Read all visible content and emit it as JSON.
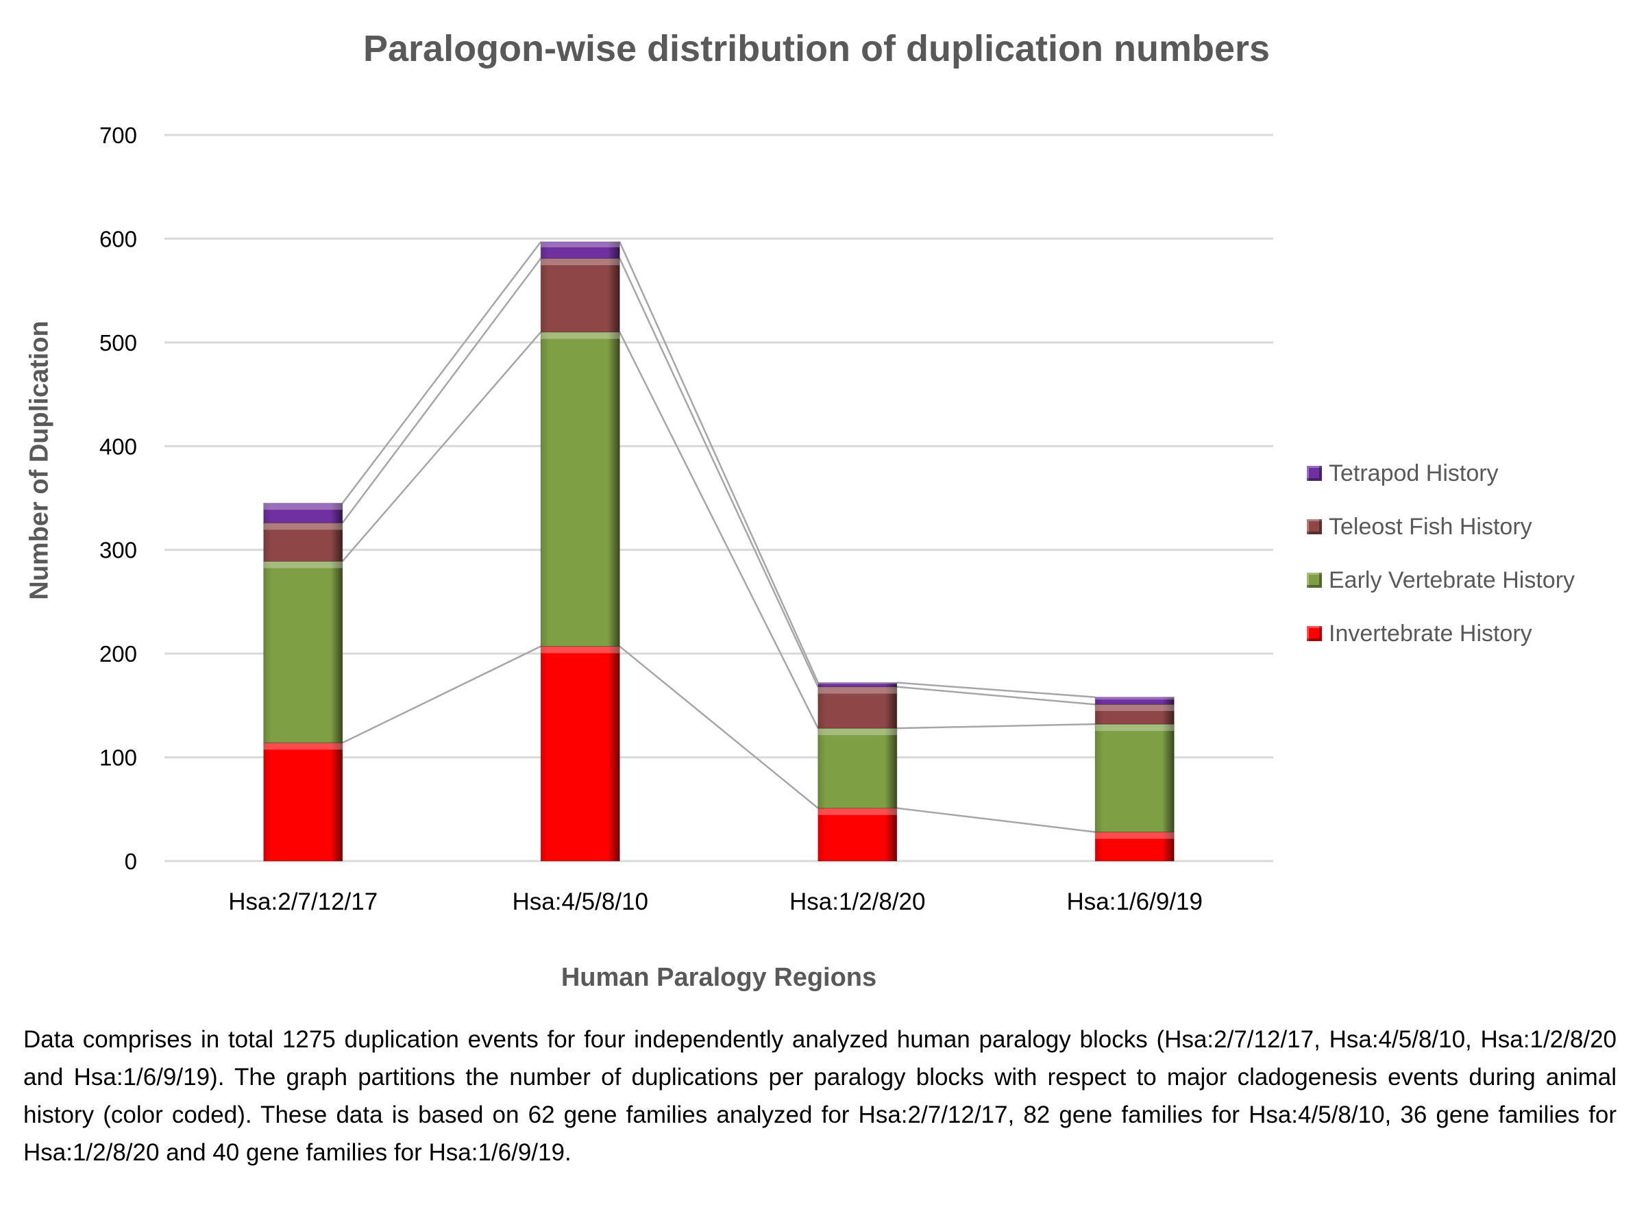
{
  "chart_data": {
    "type": "bar",
    "stacked": true,
    "title": "Paralogon-wise distribution of duplication numbers",
    "xlabel": "Human Paralogy Regions",
    "ylabel": "Number of Duplication",
    "ylim": [
      0,
      700
    ],
    "yticks": [
      0,
      100,
      200,
      300,
      400,
      500,
      600,
      700
    ],
    "grid": true,
    "legend_position": "right",
    "series_lines": true,
    "categories": [
      "Hsa:2/7/12/17",
      "Hsa:4/5/8/10",
      "Hsa:1/2/8/20",
      "Hsa:1/6/9/19"
    ],
    "series": [
      {
        "name": "Invertebrate History",
        "color": "#FF0000",
        "values": [
          114,
          207,
          51,
          28
        ]
      },
      {
        "name": "Early Vertebrate History",
        "color": "#7F9F45",
        "values": [
          175,
          303,
          77,
          104
        ]
      },
      {
        "name": "Teleost Fish History",
        "color": "#8E4646",
        "values": [
          37,
          71,
          40,
          19
        ]
      },
      {
        "name": "Tetrapod History",
        "color": "#7030A0",
        "values": [
          19,
          16,
          4,
          7
        ]
      }
    ]
  },
  "caption": "Data comprises in total 1275 duplication events for four independently analyzed human paralogy blocks (Hsa:2/7/12/17, Hsa:4/5/8/10, Hsa:1/2/8/20 and Hsa:1/6/9/19). The graph partitions the number of duplications per paralogy blocks with respect to major cladogenesis events during animal history (color coded). These data is based on 62 gene families analyzed for Hsa:2/7/12/17, 82 gene families for Hsa:4/5/8/10, 36 gene families for Hsa:1/2/8/20 and 40 gene families for Hsa:1/6/9/19."
}
